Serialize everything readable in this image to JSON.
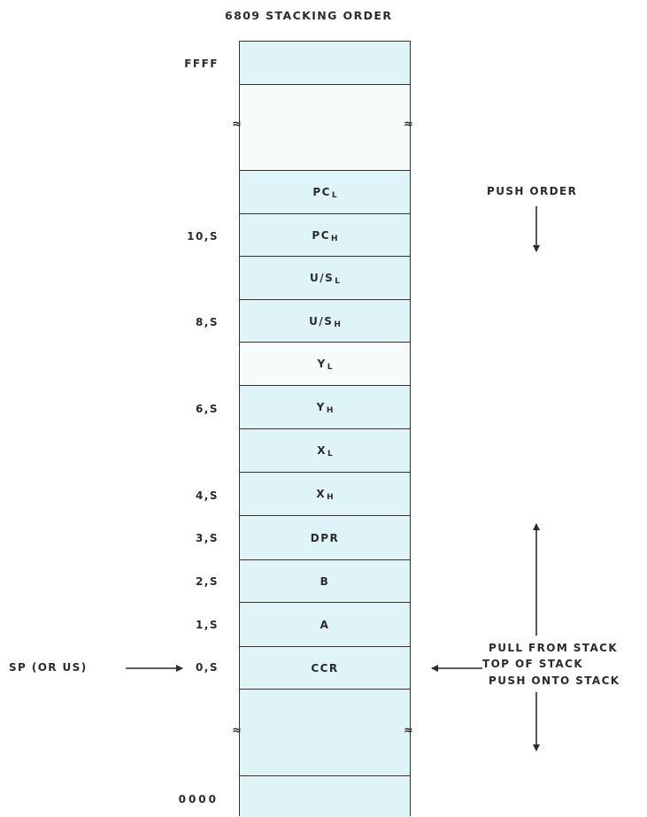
{
  "title": "6809 STACKING ORDER",
  "cells": [
    {
      "label": "",
      "sub": ""
    },
    {
      "label": "",
      "sub": ""
    },
    {
      "label": "PC",
      "sub": "L"
    },
    {
      "label": "PC",
      "sub": "H"
    },
    {
      "label": "U/S",
      "sub": "L"
    },
    {
      "label": "U/S",
      "sub": "H"
    },
    {
      "label": "Y",
      "sub": "L"
    },
    {
      "label": "Y",
      "sub": "H"
    },
    {
      "label": "X",
      "sub": "L"
    },
    {
      "label": "X",
      "sub": "H"
    },
    {
      "label": "DPR",
      "sub": ""
    },
    {
      "label": "B",
      "sub": ""
    },
    {
      "label": "A",
      "sub": ""
    },
    {
      "label": "CCR",
      "sub": ""
    },
    {
      "label": "",
      "sub": ""
    },
    {
      "label": "",
      "sub": ""
    }
  ],
  "addresses": {
    "ffff": "FFFF",
    "s10": "10,S",
    "s8": "8,S",
    "s6": "6,S",
    "s4": "4,S",
    "s3": "3,S",
    "s2": "2,S",
    "s1": "1,S",
    "s0": "0,S",
    "zero": "0000"
  },
  "notes": {
    "push_order": "PUSH ORDER",
    "pointer": "SP (OR US)",
    "pull": "PULL FROM STACK",
    "top": "TOP OF STACK",
    "push": "PUSH ONTO STACK"
  },
  "colors": {
    "cell": "#dff4f7",
    "line": "#333333"
  }
}
